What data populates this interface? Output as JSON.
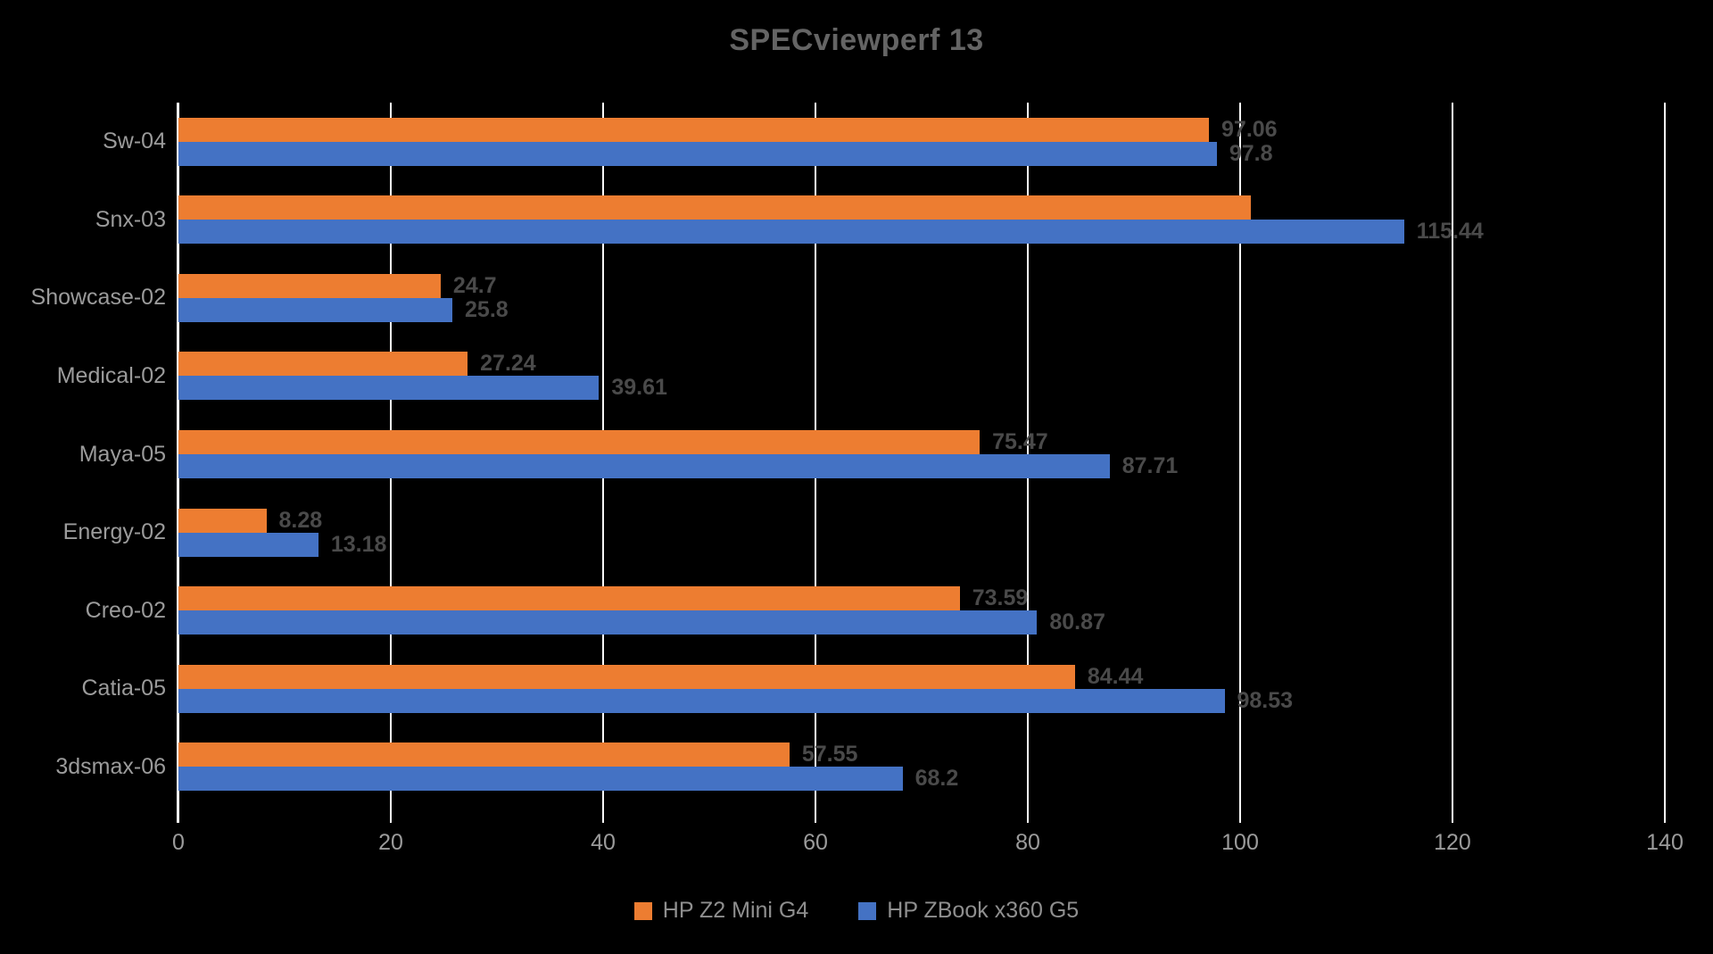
{
  "style": {
    "background": "#000000",
    "gridline_color": "#FFFFFF",
    "title_color": "#646464",
    "data_label_color": "#4A4A4A",
    "axis_label_color": "#9B9B9B",
    "legend_text_color": "#8F8F8F"
  },
  "chart_data": {
    "type": "bar",
    "orientation": "horizontal",
    "title": "SPECviewperf 13",
    "categories": [
      "Sw-04",
      "Snx-03",
      "Showcase-02",
      "Medical-02",
      "Maya-05",
      "Energy-02",
      "Creo-02",
      "Catia-05",
      "3dsmax-06"
    ],
    "series": [
      {
        "name": "HP Z2 Mini G4",
        "color": "#ED7D31",
        "values": [
          97.06,
          101.0,
          24.7,
          27.24,
          75.47,
          8.28,
          73.59,
          84.44,
          57.55
        ],
        "labels": [
          "97.06",
          "",
          "24.7",
          "27.24",
          "75.47",
          "8.28",
          "73.59",
          "84.44",
          "57.55"
        ]
      },
      {
        "name": "HP ZBook x360 G5",
        "color": "#4472C4",
        "values": [
          97.8,
          115.44,
          25.8,
          39.61,
          87.71,
          13.18,
          80.87,
          98.53,
          68.2
        ],
        "labels": [
          "97.8",
          "115.44",
          "25.8",
          "39.61",
          "87.71",
          "13.18",
          "80.87",
          "98.53",
          "68.2"
        ]
      }
    ],
    "xlabel": "",
    "ylabel": "",
    "xlim": [
      0,
      140
    ],
    "x_ticks": [
      0,
      20,
      40,
      60,
      80,
      100,
      120,
      140
    ],
    "grid": true,
    "legend_position": "bottom"
  }
}
